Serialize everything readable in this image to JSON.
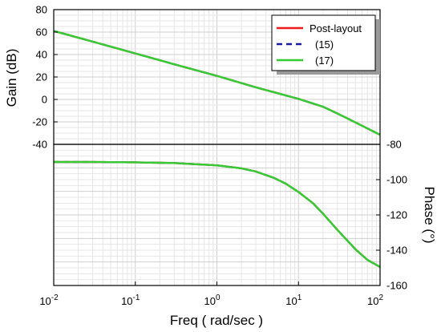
{
  "chart_data": [
    {
      "panel": "gain",
      "type": "line",
      "title": "",
      "xlabel": "",
      "ylabel": "Gain (dB)",
      "xscale": "log",
      "xlim": [
        0.01,
        100
      ],
      "ylim": [
        -40,
        80
      ],
      "yticks": [
        80,
        60,
        40,
        20,
        0,
        -20,
        -40
      ],
      "grid": true,
      "legend": {
        "placement": "top-right",
        "entries": [
          {
            "label": "Post-layout",
            "color": "#ee1c1c",
            "style": "solid"
          },
          {
            "label": "(15)",
            "color": "#1a1aa8",
            "style": "dashed"
          },
          {
            "label": "(17)",
            "color": "#33cc33",
            "style": "solid"
          }
        ]
      },
      "series": [
        {
          "name": "Post-layout",
          "color": "#ee1c1c",
          "style": "solid",
          "x": [
            0.01,
            0.03,
            0.1,
            0.3,
            1,
            3,
            10,
            20,
            30,
            50,
            100
          ],
          "y": [
            61,
            51.5,
            41,
            31.3,
            21,
            10.8,
            0.5,
            -6.5,
            -12.5,
            -20.5,
            -31.5
          ]
        },
        {
          "name": "(15)",
          "color": "#1a1aa8",
          "style": "dashed",
          "x": [
            0.01,
            0.03,
            0.1,
            0.3,
            1,
            3,
            10,
            20,
            30,
            50,
            100
          ],
          "y": [
            61,
            51.5,
            41,
            31.3,
            21,
            10.8,
            0.5,
            -6.5,
            -12.5,
            -20.5,
            -31.5
          ]
        },
        {
          "name": "(17)",
          "color": "#33cc33",
          "style": "solid",
          "x": [
            0.01,
            0.03,
            0.1,
            0.3,
            1,
            3,
            10,
            20,
            30,
            50,
            100
          ],
          "y": [
            61,
            51.5,
            41,
            31.3,
            21,
            10.8,
            0.5,
            -6.5,
            -12.5,
            -20.5,
            -31.5
          ]
        }
      ]
    },
    {
      "panel": "phase",
      "type": "line",
      "title": "",
      "xlabel": "Freq ( rad/sec )",
      "ylabel": "Phase (°)",
      "xscale": "log",
      "xlim": [
        0.01,
        100
      ],
      "ylim": [
        -160,
        -80
      ],
      "yticks": [
        -80,
        -100,
        -120,
        -140,
        -160
      ],
      "xticks": [
        0.01,
        0.1,
        1,
        10,
        100
      ],
      "xtick_labels": [
        {
          "base": "10",
          "exp": "-2"
        },
        {
          "base": "10",
          "exp": "-1"
        },
        {
          "base": "10",
          "exp": "0"
        },
        {
          "base": "10",
          "exp": "1"
        },
        {
          "base": "10",
          "exp": "2"
        }
      ],
      "grid": true,
      "series": [
        {
          "name": "Post-layout",
          "color": "#ee1c1c",
          "style": "solid",
          "x": [
            0.01,
            0.03,
            0.1,
            0.3,
            1,
            2,
            3,
            5,
            7,
            10,
            15,
            20,
            30,
            50,
            70,
            100
          ],
          "y": [
            -90,
            -90,
            -90.2,
            -90.6,
            -91.9,
            -93.6,
            -95.4,
            -99,
            -102.3,
            -107,
            -113.3,
            -119.3,
            -128.5,
            -139.5,
            -145.5,
            -149.5
          ]
        },
        {
          "name": "(15)",
          "color": "#1a1aa8",
          "style": "dashed",
          "x": [
            0.01,
            0.03,
            0.1,
            0.3,
            1,
            2,
            3,
            5,
            7,
            10,
            15,
            20,
            30,
            50,
            70,
            100
          ],
          "y": [
            -90,
            -90,
            -90.2,
            -90.6,
            -91.9,
            -93.6,
            -95.4,
            -99,
            -102.3,
            -107,
            -113.3,
            -119.3,
            -128.5,
            -139.5,
            -145.5,
            -149.5
          ]
        },
        {
          "name": "(17)",
          "color": "#33cc33",
          "style": "solid",
          "x": [
            0.01,
            0.03,
            0.1,
            0.3,
            1,
            2,
            3,
            5,
            7,
            10,
            15,
            20,
            30,
            50,
            70,
            100
          ],
          "y": [
            -90,
            -90,
            -90.2,
            -90.6,
            -91.9,
            -93.6,
            -95.4,
            -99,
            -102.3,
            -107,
            -113.3,
            -119.3,
            -128.5,
            -139.5,
            -145.5,
            -149.5
          ]
        }
      ]
    }
  ]
}
